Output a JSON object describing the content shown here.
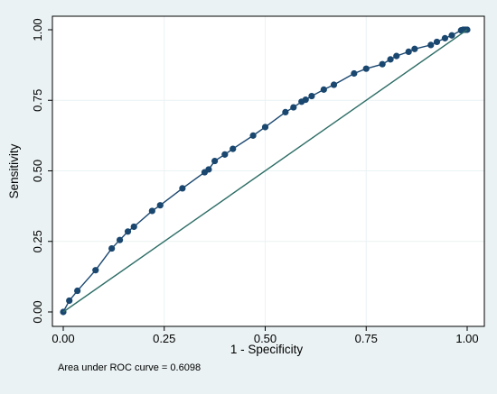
{
  "chart_data": {
    "type": "line",
    "title": "",
    "xlabel": "1 - Specificity",
    "ylabel": "Sensitivity",
    "xlim": [
      0,
      1
    ],
    "ylim": [
      0,
      1
    ],
    "x_ticks": [
      "0.00",
      "0.25",
      "0.50",
      "0.75",
      "1.00"
    ],
    "y_ticks": [
      "0.00",
      "0.25",
      "0.50",
      "0.75",
      "1.00"
    ],
    "grid": true,
    "legend": "none",
    "annotation": "Area under ROC curve = 0.6098",
    "series": [
      {
        "name": "",
        "kind": "roc",
        "color": "#1a476f",
        "points": [
          [
            0.0,
            0.0
          ],
          [
            0.015,
            0.04
          ],
          [
            0.035,
            0.075
          ],
          [
            0.08,
            0.148
          ],
          [
            0.12,
            0.225
          ],
          [
            0.14,
            0.255
          ],
          [
            0.16,
            0.285
          ],
          [
            0.175,
            0.302
          ],
          [
            0.22,
            0.358
          ],
          [
            0.24,
            0.378
          ],
          [
            0.295,
            0.438
          ],
          [
            0.35,
            0.495
          ],
          [
            0.36,
            0.505
          ],
          [
            0.375,
            0.535
          ],
          [
            0.4,
            0.558
          ],
          [
            0.42,
            0.578
          ],
          [
            0.47,
            0.625
          ],
          [
            0.5,
            0.655
          ],
          [
            0.55,
            0.708
          ],
          [
            0.57,
            0.725
          ],
          [
            0.59,
            0.745
          ],
          [
            0.6,
            0.752
          ],
          [
            0.615,
            0.765
          ],
          [
            0.645,
            0.788
          ],
          [
            0.67,
            0.805
          ],
          [
            0.72,
            0.845
          ],
          [
            0.75,
            0.862
          ],
          [
            0.79,
            0.878
          ],
          [
            0.81,
            0.895
          ],
          [
            0.825,
            0.907
          ],
          [
            0.855,
            0.922
          ],
          [
            0.87,
            0.932
          ],
          [
            0.91,
            0.946
          ],
          [
            0.925,
            0.957
          ],
          [
            0.945,
            0.97
          ],
          [
            0.962,
            0.98
          ],
          [
            0.985,
            0.998
          ],
          [
            0.99,
            1.0
          ],
          [
            0.995,
            1.0
          ],
          [
            1.0,
            1.0
          ]
        ]
      },
      {
        "name": "",
        "kind": "reference",
        "color": "#2d6d66",
        "points": [
          [
            0,
            0
          ],
          [
            1,
            1
          ]
        ]
      }
    ]
  }
}
